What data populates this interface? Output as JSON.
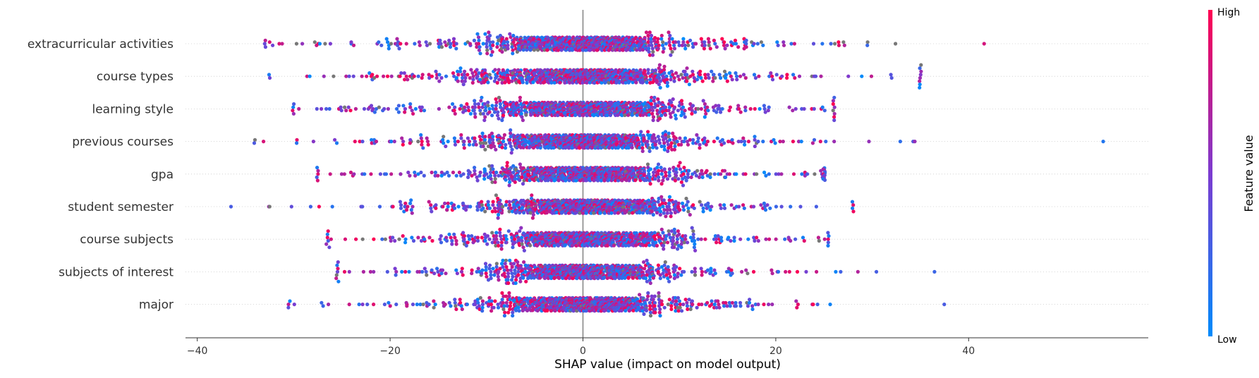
{
  "chart_data": {
    "type": "scatter",
    "subtype": "shap-beeswarm",
    "title": "",
    "xlabel": "SHAP value (impact on model output)",
    "xlim": [
      -41,
      58
    ],
    "xticks": [
      -40,
      -20,
      0,
      20,
      40
    ],
    "xtick_labels": [
      "−40",
      "−20",
      "0",
      "20",
      "40"
    ],
    "features": [
      {
        "name": "extracurricular activities",
        "min": -33,
        "max": 41.5,
        "core_spread": 10,
        "tail_spread": 27,
        "points": 1000
      },
      {
        "name": "course types",
        "min": -32.5,
        "max": 35,
        "core_spread": 10,
        "tail_spread": 27,
        "points": 1000
      },
      {
        "name": "learning style",
        "min": -30,
        "max": 26,
        "core_spread": 10,
        "tail_spread": 24,
        "points": 1000
      },
      {
        "name": "previous courses",
        "min": -34,
        "max": 54,
        "core_spread": 9,
        "tail_spread": 25,
        "points": 1000
      },
      {
        "name": "gpa",
        "min": -27.5,
        "max": 25,
        "core_spread": 9,
        "tail_spread": 23,
        "points": 1000
      },
      {
        "name": "student semester",
        "min": -36.5,
        "max": 28,
        "core_spread": 9,
        "tail_spread": 23,
        "points": 1000
      },
      {
        "name": "course subjects",
        "min": -26.5,
        "max": 25.5,
        "core_spread": 9,
        "tail_spread": 23,
        "points": 1000
      },
      {
        "name": "subjects of interest",
        "min": -25.5,
        "max": 36.5,
        "core_spread": 8,
        "tail_spread": 22,
        "points": 1000
      },
      {
        "name": "major",
        "min": -30.5,
        "max": 37.5,
        "core_spread": 8,
        "tail_spread": 22,
        "points": 1000
      }
    ],
    "colorbar": {
      "label": "Feature value",
      "high_label": "High",
      "low_label": "Low",
      "low_color": "#008bfb",
      "mid_color": "#7c3bd0",
      "high_color": "#ff0051"
    },
    "zero_line_color": "#888888"
  }
}
